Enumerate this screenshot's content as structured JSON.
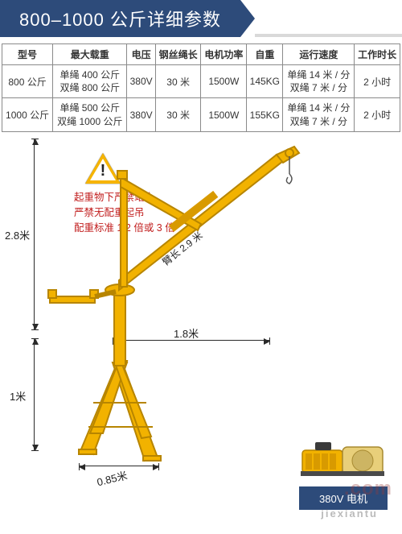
{
  "palette": {
    "header_bg": "#2d4b7a",
    "header_text": "#ffffff",
    "rule_gray": "#d9d9d9",
    "table_border": "#8a8a8a",
    "text": "#333333",
    "dim_line": "#2a2a2a",
    "warning_fill": "#f6b400",
    "warning_text": "#c22020",
    "crane_yellow": "#f2b200",
    "crane_outline": "#b78500",
    "motor_label_bg": "#2d4b7a"
  },
  "header": {
    "title": "800–1000 公斤详细参数"
  },
  "table": {
    "columns": [
      "型号",
      "最大载重",
      "电压",
      "钢丝绳长",
      "电机功率",
      "自重",
      "运行速度",
      "工作时长"
    ],
    "rows": [
      {
        "model": "800 公斤",
        "max_load": "单绳 400 公斤\n双绳 800 公斤",
        "voltage": "380V",
        "rope_len": "30 米",
        "power": "1500W",
        "self_weight": "145KG",
        "speed": "单绳 14 米 / 分\n双绳 7 米 / 分",
        "work_time": "2 小时"
      },
      {
        "model": "1000 公斤",
        "max_load": "单绳 500 公斤\n双绳 1000 公斤",
        "voltage": "380V",
        "rope_len": "30 米",
        "power": "1500W",
        "self_weight": "155KG",
        "speed": "单绳 14 米 / 分\n双绳 7 米 / 分",
        "work_time": "2 小时"
      }
    ]
  },
  "warning": {
    "line1": "起重物下严禁站人",
    "line2": "严禁无配重起吊",
    "line3": "配重标准 1:2 倍或 3 倍"
  },
  "dimensions": {
    "height_upper": "2.8米",
    "height_lower": "1米",
    "width_span": "1.8米",
    "base_width": "0.85米",
    "arm_length": "臂长 2.9 米"
  },
  "motor": {
    "label": "380V 电机"
  },
  "watermark": {
    "big": ".com",
    "small": "jiexiantu"
  }
}
